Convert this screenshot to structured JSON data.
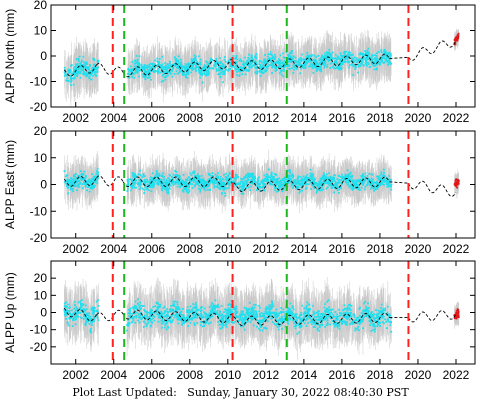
{
  "footer": {
    "text": "Plot Last Updated:   Sunday, January 30, 2022 08:40:30 PST"
  },
  "colors": {
    "daily_points": "#1fe0ef",
    "error_bars": "#b4b4b4",
    "recent_points": "#e01818",
    "offset_red": "#ff2020",
    "offset_green": "#1cb81c",
    "model": "#000000",
    "frame": "#000000"
  },
  "chart_data": [
    {
      "type": "scatter",
      "title": "",
      "xlabel": "",
      "ylabel": "ALPP North (mm)",
      "xlim": [
        2000.7,
        2023.0
      ],
      "ylim": [
        -20,
        20
      ],
      "x_ticks": [
        2002,
        2004,
        2006,
        2008,
        2010,
        2012,
        2014,
        2016,
        2018,
        2020,
        2022
      ],
      "y_ticks": [
        -20,
        -10,
        0,
        10,
        20
      ],
      "vlines": [
        {
          "x": 2003.95,
          "style": "red-dashed"
        },
        {
          "x": 2004.55,
          "style": "green-dashed"
        },
        {
          "x": 2010.25,
          "style": "red-dashed"
        },
        {
          "x": 2013.1,
          "style": "green-dashed"
        },
        {
          "x": 2019.5,
          "style": "red-dashed"
        }
      ],
      "model_line": [
        [
          2001.4,
          -6.5
        ],
        [
          2003.1,
          -4.5
        ],
        [
          2004.5,
          -6.5
        ],
        [
          2010.2,
          -3.0
        ],
        [
          2010.3,
          -4.0
        ],
        [
          2018.5,
          -1.0
        ],
        [
          2019.5,
          -0.5
        ],
        [
          2022.0,
          6.0
        ]
      ],
      "data_segments": [
        {
          "x0": 2001.4,
          "x1": 2003.2,
          "y0": -6.5,
          "y1": -4.5,
          "spread": 4.5
        },
        {
          "x0": 2004.7,
          "x1": 2018.6,
          "y0": -5.5,
          "y1": -1.0,
          "spread": 4.0
        },
        {
          "x0": 2021.9,
          "x1": 2022.15,
          "y0": 5.0,
          "y1": 8.0,
          "spread": 1.5,
          "recent": true
        }
      ]
    },
    {
      "type": "scatter",
      "title": "",
      "xlabel": "",
      "ylabel": "ALPP East (mm)",
      "xlim": [
        2000.7,
        2023.0
      ],
      "ylim": [
        -20,
        20
      ],
      "x_ticks": [
        2002,
        2004,
        2006,
        2008,
        2010,
        2012,
        2014,
        2016,
        2018,
        2020,
        2022
      ],
      "y_ticks": [
        -20,
        -10,
        0,
        10,
        20
      ],
      "vlines": [
        {
          "x": 2003.95,
          "style": "red-dashed"
        },
        {
          "x": 2004.55,
          "style": "green-dashed"
        },
        {
          "x": 2010.25,
          "style": "red-dashed"
        },
        {
          "x": 2013.1,
          "style": "green-dashed"
        },
        {
          "x": 2019.5,
          "style": "red-dashed"
        }
      ],
      "model_line": [
        [
          2001.4,
          1.0
        ],
        [
          2003.1,
          1.5
        ],
        [
          2004.5,
          1.0
        ],
        [
          2010.2,
          1.0
        ],
        [
          2010.3,
          -1.0
        ],
        [
          2018.5,
          1.0
        ],
        [
          2019.5,
          0.5
        ],
        [
          2022.0,
          -3.0
        ]
      ],
      "data_segments": [
        {
          "x0": 2001.4,
          "x1": 2003.2,
          "y0": 1.0,
          "y1": 1.5,
          "spread": 3.5
        },
        {
          "x0": 2004.7,
          "x1": 2018.6,
          "y0": 1.0,
          "y1": 1.0,
          "spread": 3.5
        },
        {
          "x0": 2021.9,
          "x1": 2022.15,
          "y0": 0.0,
          "y1": 1.0,
          "spread": 2.0,
          "recent": true
        }
      ]
    },
    {
      "type": "scatter",
      "title": "",
      "xlabel": "",
      "ylabel": "ALPP Up (mm)",
      "xlim": [
        2000.7,
        2023.0
      ],
      "ylim": [
        -30,
        30
      ],
      "x_ticks": [
        2002,
        2004,
        2006,
        2008,
        2010,
        2012,
        2014,
        2016,
        2018,
        2020,
        2022
      ],
      "y_ticks": [
        -20,
        -10,
        0,
        10,
        20
      ],
      "vlines": [
        {
          "x": 2003.95,
          "style": "red-dashed"
        },
        {
          "x": 2004.55,
          "style": "green-dashed"
        },
        {
          "x": 2010.25,
          "style": "red-dashed"
        },
        {
          "x": 2013.1,
          "style": "green-dashed"
        },
        {
          "x": 2019.5,
          "style": "red-dashed"
        }
      ],
      "model_line": [
        [
          2001.4,
          1.0
        ],
        [
          2003.1,
          -3.0
        ],
        [
          2004.5,
          -1.0
        ],
        [
          2010.2,
          -3.5
        ],
        [
          2010.3,
          -5.0
        ],
        [
          2018.5,
          -3.0
        ],
        [
          2019.5,
          -3.0
        ],
        [
          2022.0,
          -1.0
        ]
      ],
      "data_segments": [
        {
          "x0": 2001.4,
          "x1": 2003.2,
          "y0": 1.0,
          "y1": -2.0,
          "spread": 7.0
        },
        {
          "x0": 2004.7,
          "x1": 2018.6,
          "y0": -1.0,
          "y1": -3.0,
          "spread": 7.0
        },
        {
          "x0": 2021.9,
          "x1": 2022.15,
          "y0": -2.0,
          "y1": -1.0,
          "spread": 3.0,
          "recent": true
        }
      ]
    }
  ]
}
